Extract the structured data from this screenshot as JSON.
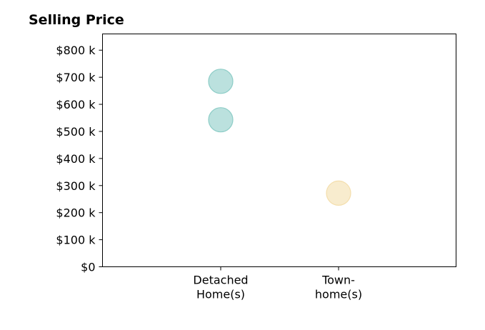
{
  "chart_data": {
    "type": "scatter",
    "title": "Selling Price",
    "xlabel": "",
    "ylabel": "",
    "categories": [
      [
        "Detached",
        "Home(s)"
      ],
      [
        "Town-",
        "home(s)"
      ]
    ],
    "y_ticks": [
      {
        "value": 0,
        "label": "$0"
      },
      {
        "value": 100000,
        "label": "$100 k"
      },
      {
        "value": 200000,
        "label": "$200 k"
      },
      {
        "value": 300000,
        "label": "$300 k"
      },
      {
        "value": 400000,
        "label": "$400 k"
      },
      {
        "value": 500000,
        "label": "$500 k"
      },
      {
        "value": 600000,
        "label": "$600 k"
      },
      {
        "value": 700000,
        "label": "$700 k"
      },
      {
        "value": 800000,
        "label": "$800 k"
      }
    ],
    "ylim": [
      0,
      860000
    ],
    "grid": false,
    "points": [
      {
        "category": 0,
        "y": 685000,
        "color": "#84c9c2"
      },
      {
        "category": 0,
        "y": 543000,
        "color": "#84c9c2"
      },
      {
        "category": 1,
        "y": 272000,
        "color": "#f3dca6"
      }
    ]
  }
}
